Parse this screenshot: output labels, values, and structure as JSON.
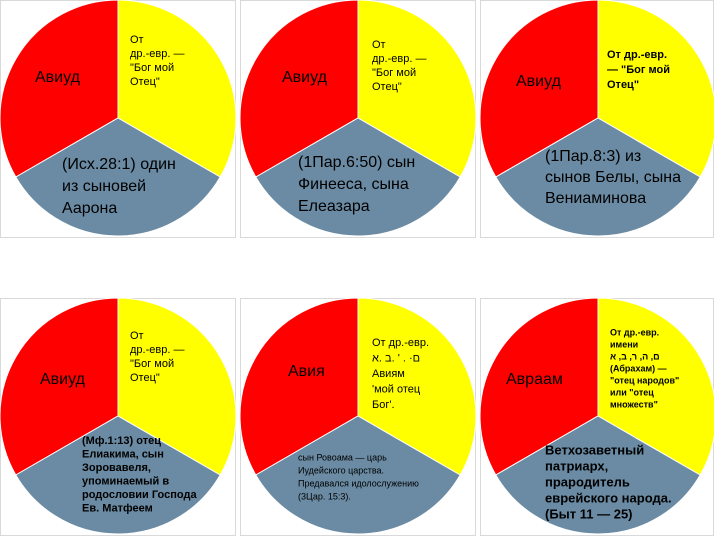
{
  "panels": [
    {
      "name": "Авиуд",
      "top_text": [
        "От",
        "др.-евр. —",
        "\"Бог мой",
        "Отец\""
      ],
      "bottom_text": [
        "(Исх.28:1) один",
        "из сыновей",
        "Аарона"
      ]
    },
    {
      "name": "Авиуд",
      "top_text": [
        "От",
        "др.-евр. —",
        "\"Бог мой",
        "Отец\""
      ],
      "bottom_text": [
        "(1Пар.6:50) сын",
        "Финееса, сына",
        "Елеазара"
      ]
    },
    {
      "name": "Авиуд",
      "top_text": [
        "От др.-евр.",
        "— \"Бог мой",
        "Отец\""
      ],
      "bottom_text": [
        "(1Пар.8:3) из",
        "сынов Белы, сына",
        "Вениаминова"
      ]
    },
    {
      "name": "Авиуд",
      "top_text": [
        "От",
        "др.-евр. —",
        "\"Бог мой",
        "Отец\""
      ],
      "bottom_text": [
        "(Мф.1:13) отец",
        "Елиакима, сын",
        "Зоровавеля,",
        "упоминаемый в",
        "родословии Господа",
        "Ев. Матфеем"
      ]
    },
    {
      "name": "Авия",
      "top_text": [
        "От др.-евр.",
        "ם· . ' .ב .א",
        "Авиям",
        "'мой отец",
        "Бог'."
      ],
      "bottom_text": [
        "сын Ровоама — царь",
        "Иудейского царства.",
        "Предавался идолослужению",
        "(3Цар. 15:3)."
      ]
    },
    {
      "name": "Авраам",
      "top_text": [
        "От др.-евр.",
        "имени",
        "ם, ה, ר, ב, א",
        "(Абрахам) —",
        "\"отец народов\"",
        "или \"отец",
        "множеств\""
      ],
      "bottom_text": [
        "Ветхозаветный",
        "патриарх,",
        "прародитель",
        "еврейского народа.",
        "(Быт 11 — 25)"
      ]
    }
  ]
}
